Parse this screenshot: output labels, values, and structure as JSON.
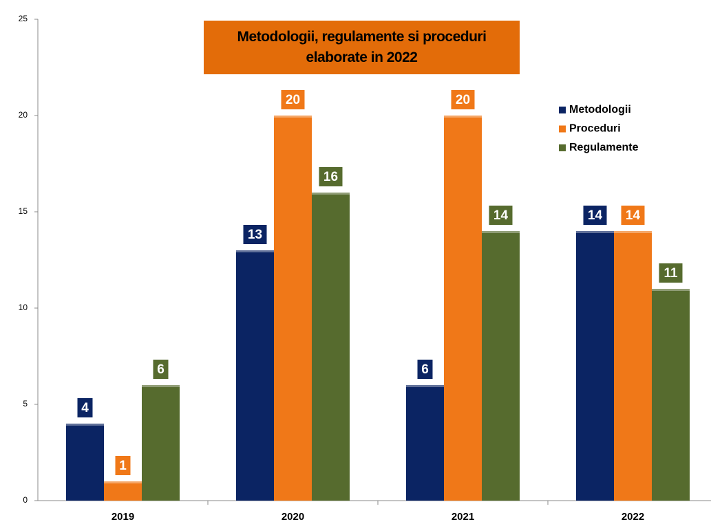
{
  "chart_data": {
    "type": "bar",
    "title": "Metodologii, regulamente si proceduri elaborate in 2022",
    "categories": [
      "2019",
      "2020",
      "2021",
      "2022"
    ],
    "series": [
      {
        "name": "Metodologii",
        "color": "#0b2463",
        "values": [
          4,
          13,
          6,
          14
        ]
      },
      {
        "name": "Proceduri",
        "color": "#f07818",
        "values": [
          1,
          20,
          20,
          14
        ]
      },
      {
        "name": "Regulamente",
        "color": "#566b2e",
        "values": [
          6,
          16,
          14,
          11
        ]
      }
    ],
    "ylim": [
      0,
      25
    ],
    "yticks": [
      0,
      5,
      10,
      15,
      20,
      25
    ],
    "legend": "upper right",
    "data_labels": true
  }
}
